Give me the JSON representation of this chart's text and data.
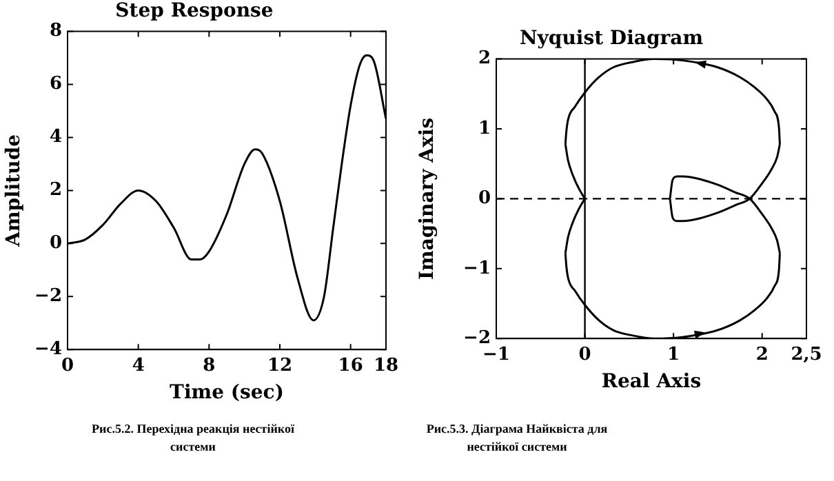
{
  "chart_data": [
    {
      "type": "line",
      "title": "Step Response",
      "xlabel": "Time (sec)",
      "ylabel": "Amplitude",
      "xlim": [
        0,
        18
      ],
      "xticks": [
        0,
        4,
        8,
        12,
        16,
        18
      ],
      "ylim": [
        -4,
        8
      ],
      "yticks": [
        {
          "value": -4,
          "label": "−4"
        },
        {
          "value": -2,
          "label": "−2"
        },
        0,
        2,
        4,
        6,
        8
      ],
      "grid": false,
      "legend": false,
      "marker": "none",
      "line_style": "solid",
      "series": [
        {
          "color": "#000000",
          "x": [
            0,
            1,
            2,
            3,
            4,
            5,
            6,
            7,
            7.5,
            8,
            9,
            10,
            10.6,
            11,
            12,
            13,
            13.9,
            14.5,
            15,
            15.5,
            16,
            16.5,
            16.9,
            17.3,
            18
          ],
          "values": [
            0,
            0.15,
            0.7,
            1.5,
            2.0,
            1.6,
            0.6,
            -0.6,
            -0.6,
            -0.3,
            1.1,
            3.0,
            3.55,
            3.4,
            1.6,
            -1.3,
            -2.9,
            -2.0,
            0.5,
            3.0,
            5.2,
            6.7,
            7.1,
            6.9,
            4.7
          ]
        }
      ],
      "annotations": [
        "Рис.5.2. Перехідна реакція нестійкої системи"
      ]
    },
    {
      "type": "line",
      "title": "Nyquist Diagram",
      "xlabel": "Real Axis",
      "ylabel": "Imaginary Axis",
      "xlim": [
        -1,
        2.5
      ],
      "xticks": [
        {
          "value": -1,
          "label": "−1"
        },
        0,
        1,
        2,
        {
          "value": 2.5,
          "label": "2,5"
        }
      ],
      "ylim": [
        -2,
        2
      ],
      "yticks": [
        {
          "value": -2,
          "label": "−2"
        },
        {
          "value": -1,
          "label": "−1"
        },
        0,
        1,
        2
      ],
      "grid": false,
      "legend": false,
      "marker": "none",
      "line_style": "solid",
      "ref_lines": [
        {
          "axis": "y",
          "value": 0,
          "line_style": "dashed",
          "color": "#000000"
        },
        {
          "axis": "x",
          "value": 0,
          "line_style": "solid",
          "color": "#000000"
        }
      ],
      "series": [
        {
          "color": "#000000",
          "x": [
            0,
            -0.07,
            -0.14,
            -0.19,
            -0.22
          ],
          "values": [
            0,
            -0.15,
            -0.35,
            -0.55,
            -0.78
          ]
        },
        {
          "color": "#000000",
          "x": [
            -0.22,
            -0.21,
            -0.19,
            -0.11,
            0,
            0.15,
            0.32,
            0.55,
            0.78,
            1.1,
            1.5,
            1.75,
            1.91,
            2.05,
            2.14,
            2.19,
            2.2
          ],
          "values": [
            -0.78,
            -0.95,
            -1.13,
            -1.32,
            -1.52,
            -1.73,
            -1.88,
            -1.96,
            -2.0,
            -1.98,
            -1.88,
            -1.74,
            -1.6,
            -1.43,
            -1.25,
            -1.02,
            -0.78
          ]
        },
        {
          "color": "#000000",
          "x": [
            2.2,
            2.17,
            2.11,
            2.0,
            1.86,
            1.7,
            1.5,
            1.3,
            1.19,
            1.1,
            1.04,
            0.99,
            0.96
          ],
          "values": [
            -0.78,
            -0.6,
            -0.43,
            -0.22,
            0,
            0.09,
            0.2,
            0.28,
            0.31,
            0.32,
            0.32,
            0.27,
            0
          ]
        },
        {
          "color": "#000000",
          "x": [
            0.96,
            0.99,
            1.04,
            1.1,
            1.19,
            1.3,
            1.5,
            1.7,
            1.86,
            2.0,
            2.11,
            2.17,
            2.2
          ],
          "values": [
            0,
            -0.27,
            -0.32,
            -0.32,
            -0.31,
            -0.28,
            -0.2,
            -0.09,
            0,
            0.22,
            0.43,
            0.6,
            0.78
          ]
        },
        {
          "color": "#000000",
          "x": [
            2.2,
            2.19,
            2.14,
            2.05,
            1.91,
            1.75,
            1.5,
            1.1,
            0.78,
            0.55,
            0.32,
            0.15,
            0,
            -0.11,
            -0.19,
            -0.21,
            -0.22
          ],
          "values": [
            0.78,
            1.02,
            1.25,
            1.43,
            1.6,
            1.74,
            1.88,
            1.98,
            2.0,
            1.96,
            1.88,
            1.73,
            1.52,
            1.32,
            1.13,
            0.95,
            0.78
          ]
        },
        {
          "color": "#000000",
          "x": [
            -0.22,
            -0.19,
            -0.14,
            -0.07,
            0
          ],
          "values": [
            0.78,
            0.55,
            0.35,
            0.15,
            0
          ]
        }
      ],
      "annotations": [
        "Рис.5.3. Діаграма Найквіста для нестійкої системи"
      ]
    }
  ]
}
